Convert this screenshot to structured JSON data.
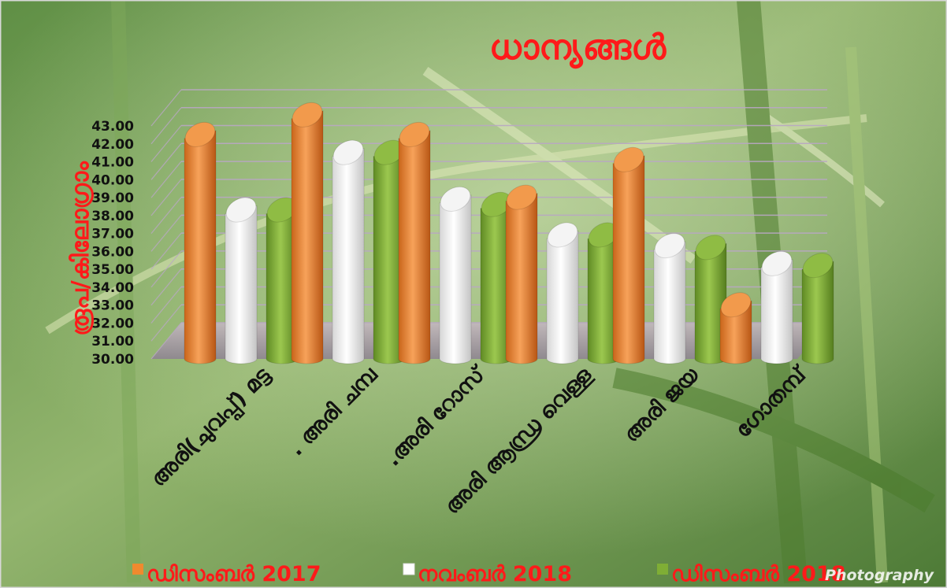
{
  "colors": {
    "series": [
      "#f08a2e",
      "#ffffff",
      "#7fae35"
    ],
    "title": "#ff1a1a",
    "background_green": "#6f9a4e"
  },
  "watermark": "Photography",
  "chart_data": {
    "type": "bar",
    "title": "ധാന്യങ്ങൾ",
    "xlabel": "",
    "ylabel": "രൂപ/കിലോഗ്രാം",
    "ylim": [
      30,
      43
    ],
    "yticks": [
      "30.00",
      "31.00",
      "32.00",
      "33.00",
      "34.00",
      "35.00",
      "36.00",
      "37.00",
      "38.00",
      "39.00",
      "40.00",
      "41.00",
      "42.00",
      "43.00"
    ],
    "categories": [
      "അരി(ചുവപ്പ്) മട്ട",
      ". അരി ചമ്പ",
      ".അരി റോസ്",
      "അരി ആന്ധ്ര വെള്ള",
      "അരി ജയ",
      "ഗോതമ്പ്"
    ],
    "series": [
      {
        "name": "ഡിസംബർ 2017",
        "values": [
          42.3,
          43.4,
          42.3,
          38.8,
          40.9,
          32.8
        ]
      },
      {
        "name": "നവംബർ 2018",
        "values": [
          38.1,
          41.3,
          38.7,
          36.7,
          36.1,
          35.1
        ]
      },
      {
        "name": "ഡിസംബർ 2018",
        "values": [
          38.1,
          41.3,
          38.4,
          36.7,
          36.0,
          35.0
        ]
      }
    ],
    "grid": true,
    "legend": "bottom"
  }
}
